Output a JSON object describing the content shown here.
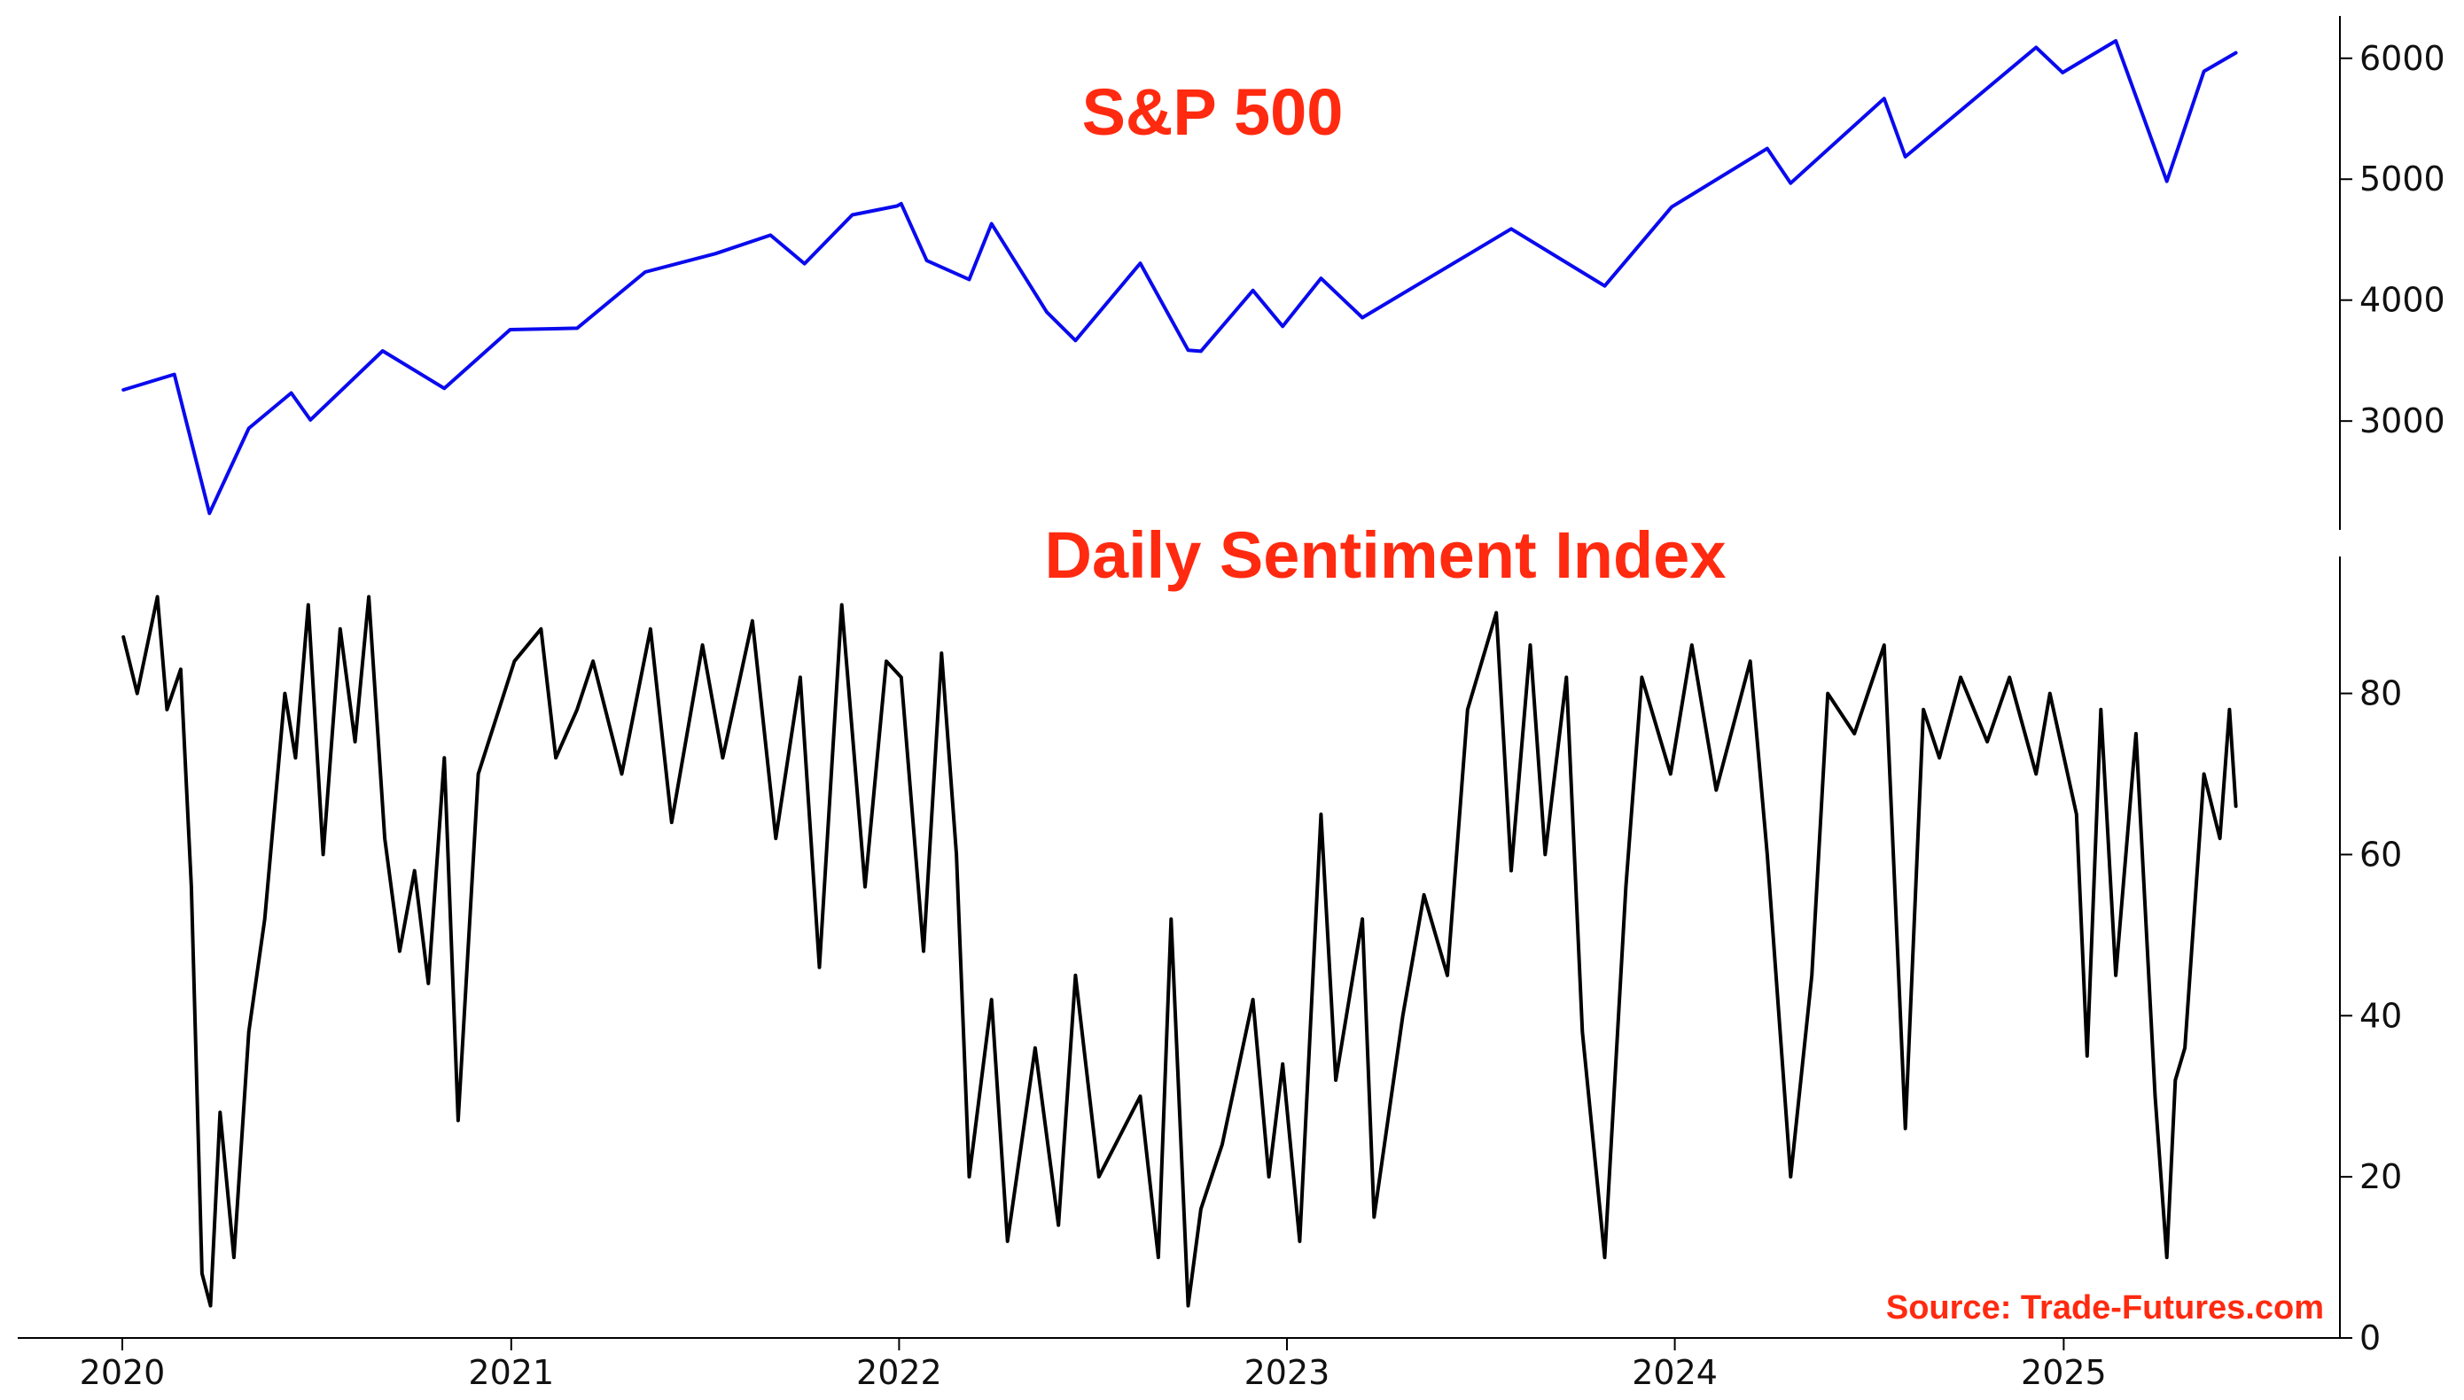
{
  "chart_data": [
    {
      "type": "line",
      "title": "S&P 500",
      "color": "#0a0aee",
      "y_axis_side": "right",
      "ylim": [
        2100,
        6350
      ],
      "yticks": [
        3000,
        4000,
        5000,
        6000
      ],
      "x_ticks": [
        "2020",
        "2021",
        "2022",
        "2023",
        "2024",
        "2025"
      ],
      "series": [
        {
          "x": [
            "2020-01-02",
            "2020-02-19",
            "2020-03-23",
            "2020-04-29",
            "2020-06-08",
            "2020-06-26",
            "2020-09-02",
            "2020-10-30",
            "2020-12-31",
            "2021-03-04",
            "2021-05-07",
            "2021-07-12",
            "2021-09-02",
            "2021-10-04",
            "2021-11-18",
            "2021-12-30",
            "2022-01-03",
            "2022-01-27",
            "2022-03-08",
            "2022-03-29",
            "2022-05-20",
            "2022-06-16",
            "2022-08-16",
            "2022-09-30",
            "2022-10-12",
            "2022-11-30",
            "2022-12-28",
            "2023-02-02",
            "2023-03-13",
            "2023-07-31",
            "2023-10-27",
            "2023-12-29",
            "2024-03-28",
            "2024-04-19",
            "2024-07-16",
            "2024-08-05",
            "2024-12-06",
            "2024-12-31",
            "2025-02-19",
            "2025-04-08",
            "2025-05-13",
            "2025-06-12"
          ],
          "values": [
            3258,
            3386,
            2237,
            2940,
            3232,
            3009,
            3580,
            3270,
            3756,
            3768,
            4232,
            4384,
            4537,
            4301,
            4705,
            4778,
            4797,
            4327,
            4171,
            4632,
            3901,
            3666,
            4305,
            3586,
            3577,
            4080,
            3783,
            4180,
            3855,
            4589,
            4117,
            4770,
            5254,
            4967,
            5667,
            5186,
            6090,
            5882,
            6144,
            4983,
            5892,
            6045
          ]
        }
      ]
    },
    {
      "type": "line",
      "title": "Daily Sentiment Index",
      "color": "#000000",
      "y_axis_side": "right",
      "ylim": [
        0,
        97
      ],
      "yticks": [
        0,
        20,
        40,
        60,
        80
      ],
      "x_ticks": [
        "2020",
        "2021",
        "2022",
        "2023",
        "2024",
        "2025"
      ],
      "series": [
        {
          "x": [
            "2020-01-02",
            "2020-01-15",
            "2020-02-03",
            "2020-02-12",
            "2020-02-25",
            "2020-03-06",
            "2020-03-16",
            "2020-03-24",
            "2020-04-02",
            "2020-04-15",
            "2020-04-29",
            "2020-05-14",
            "2020-06-02",
            "2020-06-12",
            "2020-06-24",
            "2020-07-08",
            "2020-07-24",
            "2020-08-07",
            "2020-08-20",
            "2020-09-04",
            "2020-09-18",
            "2020-10-02",
            "2020-10-15",
            "2020-10-30",
            "2020-11-12",
            "2020-12-01",
            "2021-01-04",
            "2021-01-29",
            "2021-02-12",
            "2021-03-04",
            "2021-03-19",
            "2021-04-15",
            "2021-05-12",
            "2021-06-01",
            "2021-06-30",
            "2021-07-19",
            "2021-08-16",
            "2021-09-07",
            "2021-09-30",
            "2021-10-18",
            "2021-11-08",
            "2021-11-30",
            "2021-12-20",
            "2022-01-03",
            "2022-01-24",
            "2022-02-10",
            "2022-02-24",
            "2022-03-08",
            "2022-03-29",
            "2022-04-13",
            "2022-05-09",
            "2022-05-31",
            "2022-06-16",
            "2022-07-08",
            "2022-08-16",
            "2022-09-02",
            "2022-09-14",
            "2022-09-30",
            "2022-10-12",
            "2022-11-01",
            "2022-11-30",
            "2022-12-15",
            "2022-12-28",
            "2023-01-13",
            "2023-02-02",
            "2023-02-16",
            "2023-03-13",
            "2023-03-24",
            "2023-04-20",
            "2023-05-10",
            "2023-06-01",
            "2023-06-20",
            "2023-07-17",
            "2023-07-31",
            "2023-08-18",
            "2023-09-01",
            "2023-09-21",
            "2023-10-06",
            "2023-10-27",
            "2023-11-16",
            "2023-12-01",
            "2023-12-28",
            "2024-01-17",
            "2024-02-09",
            "2024-03-12",
            "2024-03-28",
            "2024-04-19",
            "2024-05-09",
            "2024-05-24",
            "2024-06-18",
            "2024-07-16",
            "2024-08-05",
            "2024-08-22",
            "2024-09-06",
            "2024-09-26",
            "2024-10-21",
            "2024-11-11",
            "2024-12-06",
            "2024-12-19",
            "2025-01-13",
            "2025-01-23",
            "2025-02-05",
            "2025-02-19",
            "2025-03-10",
            "2025-03-28",
            "2025-04-08",
            "2025-04-16",
            "2025-04-25",
            "2025-05-13",
            "2025-05-28",
            "2025-06-06",
            "2025-06-12"
          ],
          "values": [
            87,
            80,
            92,
            78,
            83,
            56,
            8,
            4,
            28,
            10,
            38,
            52,
            80,
            72,
            91,
            60,
            88,
            74,
            92,
            62,
            48,
            58,
            44,
            72,
            27,
            70,
            84,
            88,
            72,
            78,
            84,
            70,
            88,
            64,
            86,
            72,
            89,
            62,
            82,
            46,
            91,
            56,
            84,
            82,
            48,
            85,
            60,
            20,
            42,
            12,
            36,
            14,
            45,
            20,
            30,
            10,
            52,
            4,
            16,
            24,
            42,
            20,
            34,
            12,
            65,
            32,
            52,
            15,
            40,
            55,
            45,
            78,
            90,
            58,
            86,
            60,
            82,
            38,
            10,
            56,
            82,
            70,
            86,
            68,
            84,
            60,
            20,
            45,
            80,
            75,
            86,
            26,
            78,
            72,
            82,
            74,
            82,
            70,
            80,
            65,
            35,
            78,
            45,
            75,
            30,
            10,
            32,
            36,
            70,
            62,
            78,
            66
          ]
        }
      ]
    }
  ],
  "source": "Source: Trade-Futures.com"
}
